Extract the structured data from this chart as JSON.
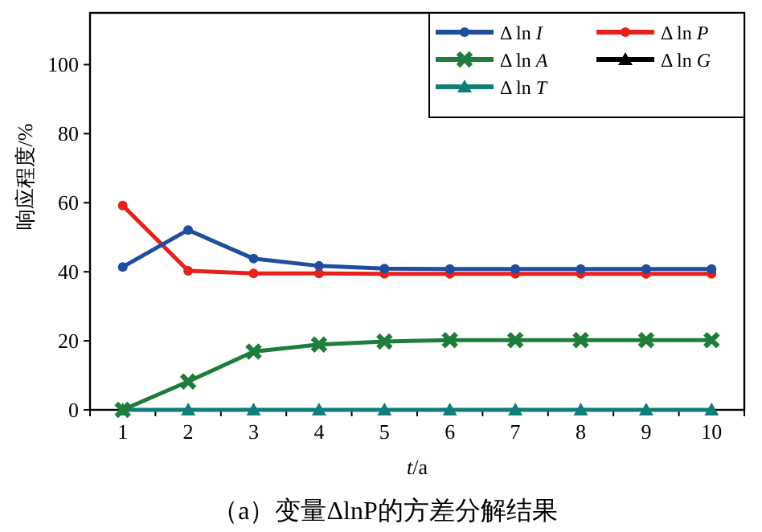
{
  "chart_data": {
    "type": "line",
    "title": "（a）变量ΔlnP的方差分解结果",
    "xlabel": "*t*/a",
    "ylabel": "响应程度/%",
    "categories": [
      "1",
      "2",
      "3",
      "4",
      "5",
      "6",
      "7",
      "8",
      "9",
      "10"
    ],
    "ylim": [
      0,
      115
    ],
    "yticks": [
      0,
      20,
      40,
      60,
      80,
      100
    ],
    "legend": "top right",
    "grid": false,
    "line_style": "solid",
    "series": [
      {
        "name": "Δ ln *I*",
        "color": "#1f4e9e",
        "marker": "circle",
        "values": [
          41.4,
          52.1,
          43.8,
          41.7,
          40.9,
          40.8,
          40.8,
          40.8,
          40.8,
          40.8
        ]
      },
      {
        "name": "Δ ln *P*",
        "color": "#e8201c",
        "marker": "circle",
        "values": [
          59.2,
          40.3,
          39.5,
          39.5,
          39.4,
          39.4,
          39.4,
          39.4,
          39.4,
          39.4
        ]
      },
      {
        "name": "Δ ln *A*",
        "color": "#1e7d3a",
        "marker": "cross",
        "values": [
          0,
          8.2,
          16.9,
          18.9,
          19.8,
          20.2,
          20.2,
          20.2,
          20.2,
          20.2
        ]
      },
      {
        "name": "Δ ln *G*",
        "color": "#000000",
        "marker": "triangle",
        "values": [
          null,
          null,
          null,
          null,
          null,
          null,
          null,
          null,
          null,
          null
        ]
      },
      {
        "name": "Δ ln *T*",
        "color": "#0f7d78",
        "marker": "triangle",
        "values": [
          0,
          0,
          0,
          0,
          0,
          0,
          0,
          0,
          0,
          0
        ]
      }
    ]
  }
}
